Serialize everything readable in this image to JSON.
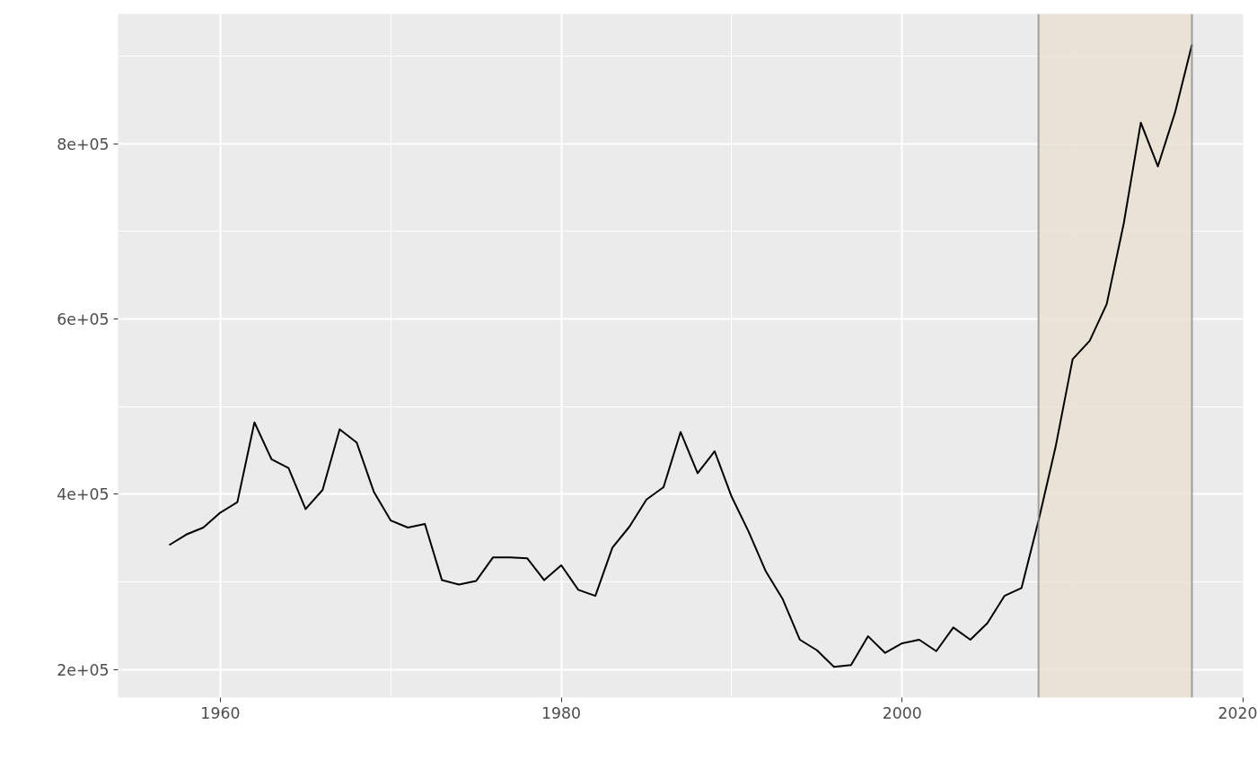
{
  "chart_data": {
    "type": "line",
    "x": [
      1957,
      1958,
      1959,
      1960,
      1961,
      1962,
      1963,
      1964,
      1965,
      1966,
      1967,
      1968,
      1969,
      1970,
      1971,
      1972,
      1973,
      1974,
      1975,
      1976,
      1977,
      1978,
      1979,
      1980,
      1981,
      1982,
      1983,
      1984,
      1985,
      1986,
      1987,
      1988,
      1989,
      1990,
      1991,
      1992,
      1993,
      1994,
      1995,
      1996,
      1997,
      1998,
      1999,
      2000,
      2001,
      2002,
      2003,
      2004,
      2005,
      2006,
      2007,
      2008,
      2009,
      2010,
      2011,
      2012,
      2013,
      2014,
      2015,
      2016,
      2017
    ],
    "series": [
      {
        "color": "#000000",
        "values": [
          342000,
          354000,
          362000,
          379000,
          391000,
          482000,
          440000,
          430000,
          383000,
          405000,
          474000,
          459000,
          403000,
          370000,
          362000,
          366000,
          302000,
          297000,
          301000,
          328000,
          328000,
          327000,
          302000,
          319000,
          291000,
          284000,
          339000,
          363000,
          394000,
          408000,
          471000,
          424000,
          449000,
          397000,
          357000,
          312000,
          280000,
          234000,
          222000,
          203000,
          205000,
          238000,
          219000,
          230000,
          234000,
          221000,
          248000,
          234000,
          253000,
          284000,
          293000,
          370000,
          454000,
          554000,
          575000,
          617000,
          709000,
          824000,
          774000,
          835000,
          913000
        ]
      }
    ],
    "xlim": [
      1954,
      2020
    ],
    "ylim": [
      168000,
      948000
    ],
    "xticks": [
      1960,
      1980,
      2000,
      2020
    ],
    "yticks": [
      {
        "value": 200000,
        "label": "2e+05"
      },
      {
        "value": 400000,
        "label": "4e+05"
      },
      {
        "value": 600000,
        "label": "6e+05"
      },
      {
        "value": 800000,
        "label": "8e+05"
      }
    ],
    "bands": [
      {
        "axis": "x",
        "from": 2008,
        "to": 2017,
        "color": "#e8e0d0"
      }
    ],
    "ref_lines": [
      {
        "axis": "x",
        "value": 2008,
        "color": "#8c8c8c"
      },
      {
        "axis": "x",
        "value": 2017,
        "color": "#8c8c8c"
      }
    ],
    "grid": true
  }
}
